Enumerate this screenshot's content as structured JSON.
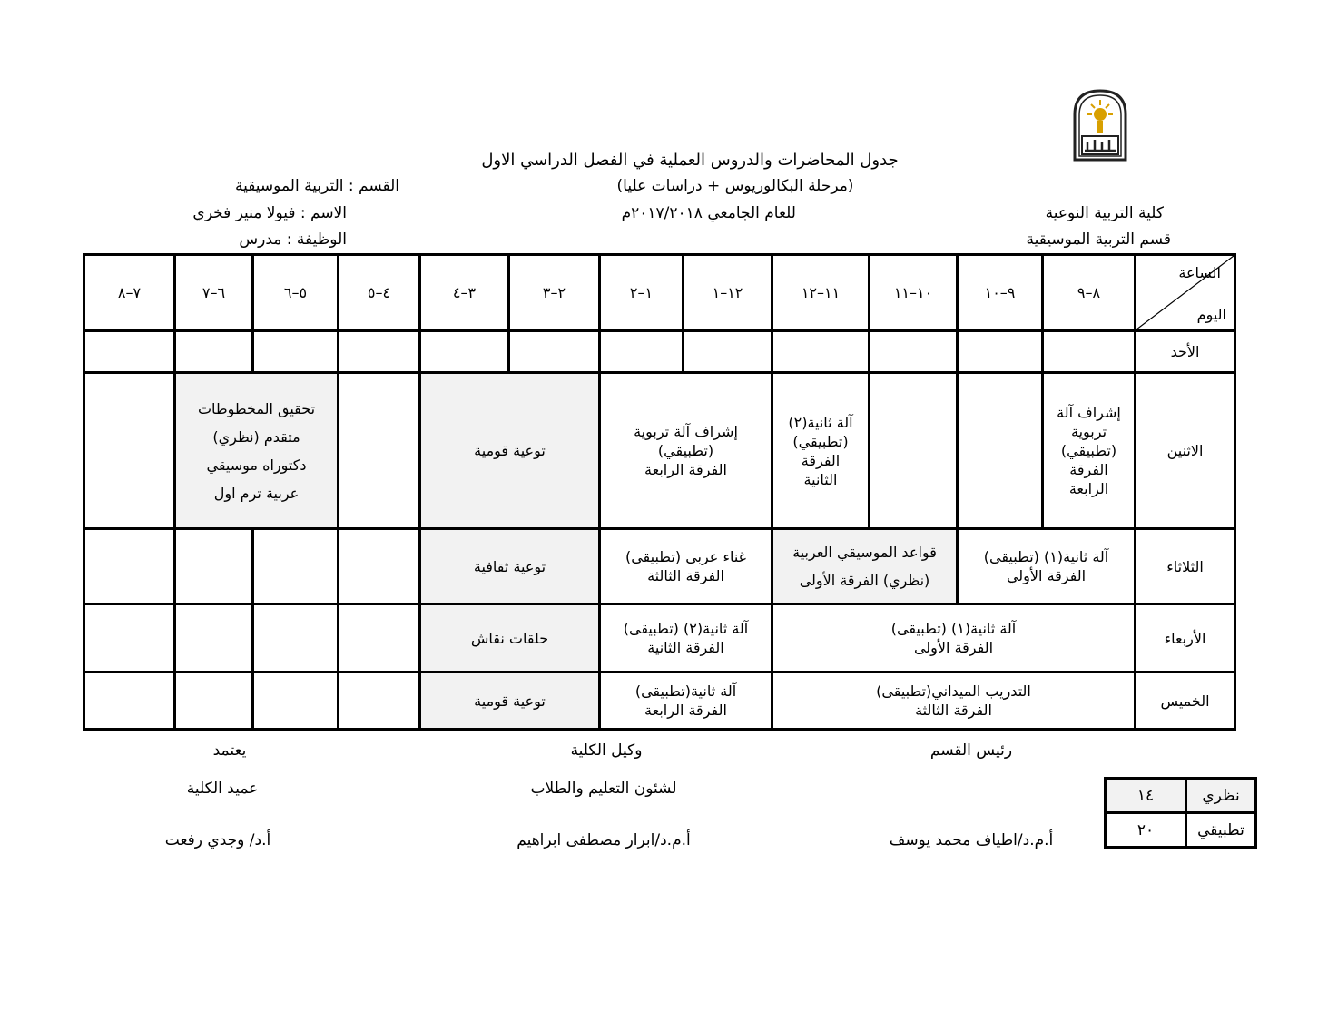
{
  "logo": {
    "text": "جامعة أسيوط"
  },
  "header": {
    "title": "جدول المحاضرات والدروس العملية في الفصل الدراسي الاول",
    "subtitle": "(مرحلة البكالوريوس + دراسات عليا)",
    "year": "للعام الجامعي ٢٠١٧/٢٠١٨م",
    "faculty": "كلية التربية النوعية",
    "faculty_dept": "قسم التربية الموسيقية",
    "dept": "القسم : التربية الموسيقية",
    "name": "الاسم : فيولا منير فخري",
    "job": "الوظيفة : مدرس"
  },
  "schedule": {
    "corner_hour": "الساعة",
    "corner_day": "اليوم",
    "hours": [
      "٨–٩",
      "٩–١٠",
      "١٠–١١",
      "١١–١٢",
      "١٢–١",
      "١–٢",
      "٢–٣",
      "٣–٤",
      "٤–٥",
      "٥–٦",
      "٦–٧",
      "٧–٨"
    ],
    "rows": [
      {
        "day": "الأحد",
        "cells": [
          {
            "span": 1,
            "lines": []
          },
          {
            "span": 1,
            "lines": []
          },
          {
            "span": 1,
            "lines": []
          },
          {
            "span": 1,
            "lines": []
          },
          {
            "span": 1,
            "lines": []
          },
          {
            "span": 1,
            "lines": []
          },
          {
            "span": 1,
            "lines": []
          },
          {
            "span": 1,
            "lines": []
          },
          {
            "span": 1,
            "lines": []
          },
          {
            "span": 1,
            "lines": []
          },
          {
            "span": 1,
            "lines": []
          },
          {
            "span": 1,
            "lines": []
          }
        ]
      },
      {
        "day": "الاثنين",
        "cells": [
          {
            "span": 1,
            "lines": [
              "إشراف آلة",
              "تربوية",
              "(تطبيقي)",
              "الفرقة",
              "الرابعة"
            ]
          },
          {
            "span": 1,
            "lines": []
          },
          {
            "span": 1,
            "lines": []
          },
          {
            "span": 1,
            "lines": [
              "آلة ثانية(٢)",
              "(تطبيقي)",
              "الفرقة",
              "الثانية"
            ]
          },
          {
            "span": 2,
            "lines": [
              "إشراف آلة تربوية",
              "(تطبيقي)",
              "الفرقة الرابعة"
            ]
          },
          {
            "span": 2,
            "gray": true,
            "lines": [
              "توعية قومية"
            ]
          },
          {
            "span": 1,
            "lines": []
          },
          {
            "span": 2,
            "gray": true,
            "spaced": true,
            "lines": [
              "تحقيق المخطوطات",
              "متقدم (نظري)",
              "دكتوراه موسيقي",
              "عربية ترم اول"
            ]
          },
          {
            "span": 1,
            "lines": []
          }
        ]
      },
      {
        "day": "الثلاثاء",
        "cells": [
          {
            "span": 2,
            "lines": [
              "آلة ثانية(١) (تطبيقى)",
              "الفرقة الأولي"
            ]
          },
          {
            "span": 2,
            "gray": true,
            "spaced": true,
            "lines": [
              "قواعد الموسيقي العربية",
              "(نظري) الفرقة الأولى"
            ]
          },
          {
            "span": 2,
            "lines": [
              "غناء عربى (تطبيقى)",
              "الفرقة الثالثة"
            ]
          },
          {
            "span": 2,
            "gray": true,
            "lines": [
              "توعية ثقافية"
            ]
          },
          {
            "span": 1,
            "lines": []
          },
          {
            "span": 1,
            "lines": []
          },
          {
            "span": 1,
            "lines": []
          },
          {
            "span": 1,
            "lines": []
          }
        ]
      },
      {
        "day": "الأربعاء",
        "cells": [
          {
            "span": 4,
            "lines": [
              "آلة ثانية(١) (تطبيقى)",
              "الفرقة الأولى"
            ]
          },
          {
            "span": 2,
            "lines": [
              "آلة ثانية(٢) (تطبيقى)",
              "الفرقة الثانية"
            ]
          },
          {
            "span": 2,
            "gray": true,
            "lines": [
              "حلقات نقاش"
            ]
          },
          {
            "span": 1,
            "lines": []
          },
          {
            "span": 1,
            "lines": []
          },
          {
            "span": 1,
            "lines": []
          },
          {
            "span": 1,
            "lines": []
          }
        ]
      },
      {
        "day": "الخميس",
        "cells": [
          {
            "span": 4,
            "lines": [
              "التدريب الميداني(تطبيقى)",
              "الفرقة الثالثة"
            ]
          },
          {
            "span": 2,
            "lines": [
              "آلة ثانية(تطبيقى)",
              "الفرقة الرابعة"
            ]
          },
          {
            "span": 2,
            "gray": true,
            "lines": [
              "توعية قومية"
            ]
          },
          {
            "span": 1,
            "lines": []
          },
          {
            "span": 1,
            "lines": []
          },
          {
            "span": 1,
            "lines": []
          },
          {
            "span": 1,
            "lines": []
          }
        ]
      }
    ]
  },
  "footer": {
    "head_title": "رئيس القسم",
    "head_name": "أ.م.د/اطياف محمد يوسف",
    "vice_title": "وكيل الكلية",
    "vice_sub": "لشئون التعليم والطلاب",
    "vice_name": "أ.م.د/ابرار مصطفى ابراهيم",
    "approve": "يعتمد",
    "dean_title": "عميد الكلية",
    "dean_name": "أ.د/ وجدي رفعت"
  },
  "summary": [
    {
      "label": "نظري",
      "value": "١٤"
    },
    {
      "label": "تطبيقي",
      "value": "٢٠"
    }
  ],
  "colors": {
    "gray_cell": "#f2f2f2",
    "logo": "#d8a000"
  }
}
